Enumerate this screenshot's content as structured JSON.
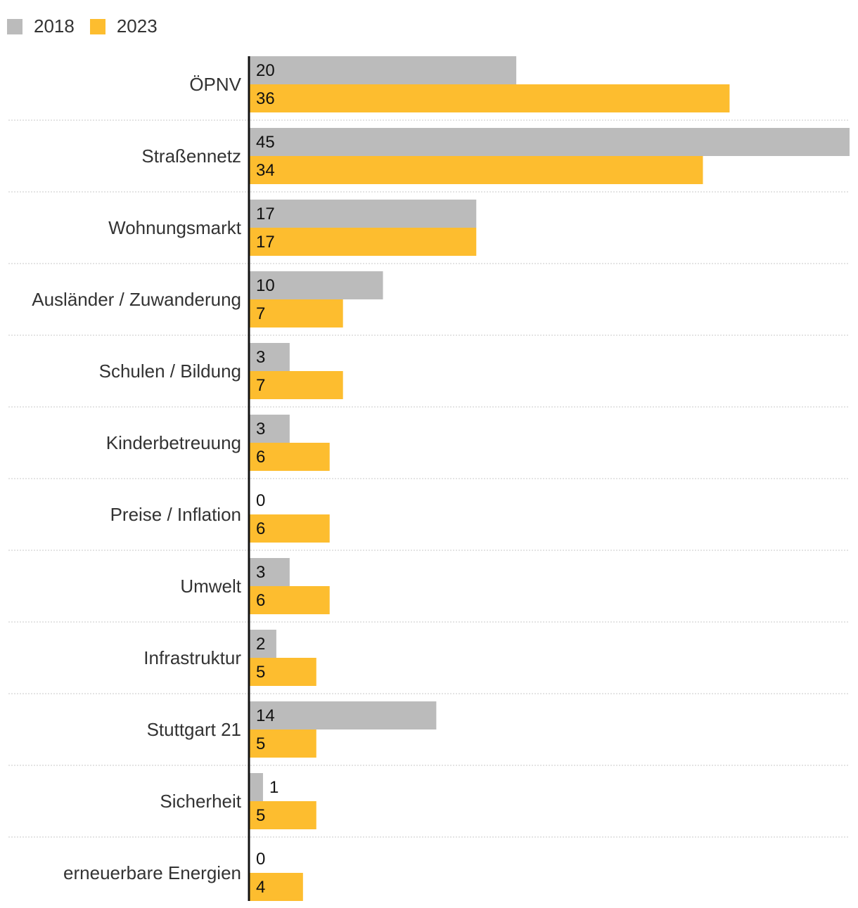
{
  "colors": {
    "series_2018": "#bbbbbb",
    "series_2023": "#fdbd2f",
    "axis": "#111111",
    "grid": "#c8c8c8",
    "text": "#333333"
  },
  "chart_data": {
    "type": "bar",
    "orientation": "horizontal",
    "title": "",
    "xlabel": "",
    "ylabel": "",
    "xlim": [
      0,
      45
    ],
    "grid": false,
    "legend_position": "top-left",
    "categories": [
      "ÖPNV",
      "Straßennetz",
      "Wohnungsmarkt",
      "Ausländer / Zuwanderung",
      "Schulen / Bildung",
      "Kinderbetreuung",
      "Preise / Inflation",
      "Umwelt",
      "Infrastruktur",
      "Stuttgart 21",
      "Sicherheit",
      "erneuerbare Energien"
    ],
    "series": [
      {
        "name": "2018",
        "values": [
          20,
          45,
          17,
          10,
          3,
          3,
          0,
          3,
          2,
          14,
          1,
          0
        ]
      },
      {
        "name": "2023",
        "values": [
          36,
          34,
          17,
          7,
          7,
          6,
          6,
          6,
          5,
          5,
          5,
          4
        ]
      }
    ]
  }
}
